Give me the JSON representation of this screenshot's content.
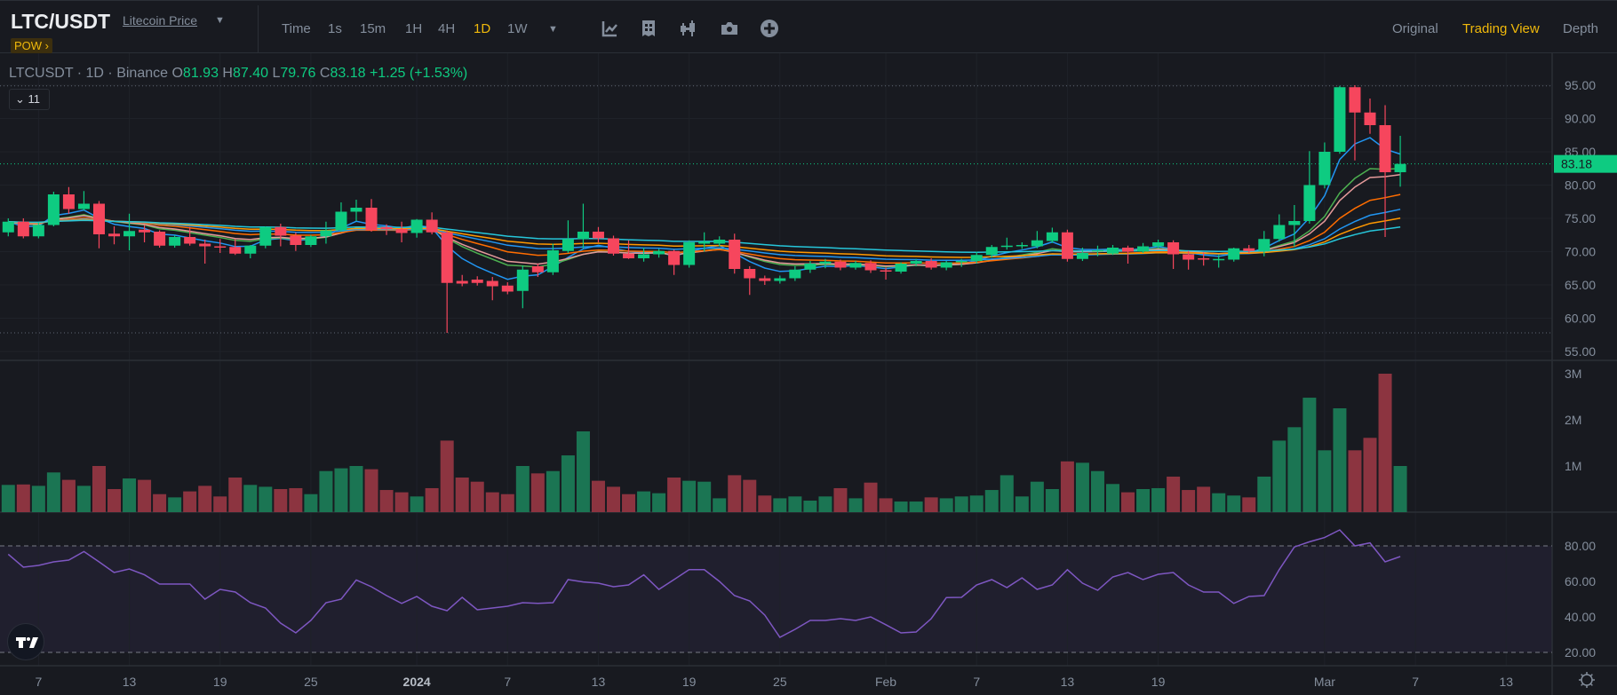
{
  "header": {
    "symbol": "LTC/USDT",
    "subtitle": "Litecoin Price",
    "badge": "POW ›",
    "intervals": [
      "Time",
      "1s",
      "15m",
      "1H",
      "4H",
      "1D",
      "1W"
    ],
    "active_interval": "1D",
    "more_caret": "▼",
    "tool_icons": [
      "indicators-icon",
      "chart-layout-icon",
      "candle-style-icon",
      "camera-icon",
      "add-icon"
    ],
    "views": [
      "Original",
      "Trading View",
      "Depth"
    ],
    "active_view": "Trading View"
  },
  "legend": {
    "title": "LTCUSDT · 1D · Binance",
    "o_label": "O",
    "o": "81.93",
    "h_label": "H",
    "h": "87.40",
    "l_label": "L",
    "l": "79.76",
    "c_label": "C",
    "c": "83.18",
    "change": "+1.25 (+1.53%)",
    "indicators_toggle": "⌄ 11"
  },
  "colors": {
    "up": "#0ecb81",
    "down": "#f6465d",
    "vol_up": "#1b7553",
    "vol_down": "#8c3440",
    "rsi": "#7e57c2",
    "bg": "#181a20"
  },
  "chart_data": {
    "type": "candlestick",
    "symbol": "LTCUSDT",
    "interval": "1D",
    "last_price": "83.18",
    "price_axis": [
      "95.00",
      "90.00",
      "85.00",
      "80.00",
      "75.00",
      "70.00",
      "65.00",
      "60.00",
      "55.00"
    ],
    "volume_axis": [
      "3M",
      "2M",
      "1M"
    ],
    "rsi_axis": [
      "80.00",
      "60.00",
      "40.00",
      "20.00"
    ],
    "time_axis": [
      "7",
      "13",
      "19",
      "25",
      "2024",
      "7",
      "13",
      "19",
      "25",
      "Feb",
      "7",
      "13",
      "19",
      "Mar",
      "7",
      "13"
    ],
    "ohlc": [
      [
        72.9,
        75.0,
        72.3,
        74.5
      ],
      [
        74.5,
        75.0,
        72.0,
        72.3
      ],
      [
        72.3,
        74.4,
        72.0,
        74.0
      ],
      [
        74.0,
        79.0,
        73.8,
        78.6
      ],
      [
        78.6,
        79.7,
        75.7,
        76.4
      ],
      [
        76.4,
        79.1,
        76.2,
        77.2
      ],
      [
        77.2,
        77.6,
        70.5,
        72.6
      ],
      [
        72.7,
        73.8,
        71.1,
        72.3
      ],
      [
        72.3,
        75.7,
        70.2,
        73.1
      ],
      [
        73.3,
        74.0,
        71.4,
        72.9
      ],
      [
        73.0,
        73.2,
        70.6,
        70.9
      ],
      [
        70.9,
        72.5,
        70.6,
        72.2
      ],
      [
        72.2,
        73.7,
        70.9,
        71.2
      ],
      [
        71.2,
        71.8,
        68.2,
        70.8
      ],
      [
        70.8,
        71.9,
        69.8,
        70.6
      ],
      [
        70.7,
        71.9,
        69.5,
        69.7
      ],
      [
        69.7,
        71.0,
        69.0,
        70.9
      ],
      [
        70.9,
        73.8,
        70.5,
        73.7
      ],
      [
        73.7,
        74.2,
        70.8,
        72.4
      ],
      [
        72.4,
        72.9,
        70.1,
        71.0
      ],
      [
        71.0,
        72.5,
        70.7,
        72.3
      ],
      [
        72.3,
        74.5,
        71.2,
        73.2
      ],
      [
        73.2,
        77.4,
        73.0,
        76.0
      ],
      [
        76.0,
        77.8,
        74.6,
        76.6
      ],
      [
        76.6,
        77.9,
        73.0,
        73.2
      ],
      [
        73.7,
        74.1,
        72.5,
        73.4
      ],
      [
        73.4,
        74.5,
        71.4,
        72.8
      ],
      [
        72.8,
        74.9,
        72.1,
        74.8
      ],
      [
        74.8,
        75.9,
        72.6,
        72.9
      ],
      [
        72.9,
        73.2,
        57.8,
        65.3
      ],
      [
        65.6,
        66.5,
        64.8,
        65.2
      ],
      [
        65.8,
        66.3,
        64.9,
        65.3
      ],
      [
        65.6,
        66.2,
        62.7,
        64.8
      ],
      [
        64.9,
        65.4,
        63.6,
        64.0
      ],
      [
        64.1,
        67.9,
        61.5,
        67.3
      ],
      [
        67.8,
        68.2,
        66.2,
        66.9
      ],
      [
        66.9,
        71.2,
        66.5,
        70.2
      ],
      [
        70.1,
        74.7,
        69.8,
        71.9
      ],
      [
        71.9,
        77.2,
        70.5,
        73.0
      ],
      [
        73.0,
        73.7,
        71.4,
        72.0
      ],
      [
        72.0,
        72.4,
        69.4,
        69.7
      ],
      [
        69.7,
        71.7,
        68.9,
        69.0
      ],
      [
        69.0,
        70.6,
        68.5,
        69.6
      ],
      [
        69.6,
        70.4,
        69.1,
        70.1
      ],
      [
        70.1,
        70.3,
        66.5,
        68.0
      ],
      [
        68.0,
        71.7,
        67.6,
        71.4
      ],
      [
        71.2,
        72.9,
        70.0,
        71.5
      ],
      [
        71.2,
        72.3,
        70.8,
        71.8
      ],
      [
        71.8,
        72.7,
        66.7,
        67.4
      ],
      [
        67.4,
        67.8,
        63.5,
        66.0
      ],
      [
        66.0,
        66.4,
        65.0,
        65.6
      ],
      [
        65.6,
        66.4,
        65.2,
        66.0
      ],
      [
        66.0,
        67.8,
        65.6,
        67.3
      ],
      [
        67.3,
        68.6,
        66.8,
        68.2
      ],
      [
        68.2,
        68.9,
        67.5,
        68.5
      ],
      [
        68.5,
        68.8,
        67.2,
        67.6
      ],
      [
        67.6,
        68.6,
        67.3,
        68.3
      ],
      [
        68.3,
        68.7,
        66.8,
        67.2
      ],
      [
        67.2,
        67.6,
        65.8,
        67.0
      ],
      [
        67.0,
        68.4,
        66.7,
        68.2
      ],
      [
        68.2,
        68.9,
        67.8,
        68.6
      ],
      [
        68.6,
        69.0,
        67.3,
        67.6
      ],
      [
        67.6,
        68.6,
        67.2,
        68.4
      ],
      [
        68.4,
        68.9,
        67.7,
        68.6
      ],
      [
        68.6,
        70.0,
        68.2,
        69.5
      ],
      [
        69.5,
        71.0,
        69.1,
        70.7
      ],
      [
        70.7,
        72.1,
        70.3,
        70.9
      ],
      [
        70.9,
        71.4,
        70.4,
        71.0
      ],
      [
        70.8,
        73.1,
        70.5,
        71.7
      ],
      [
        71.6,
        73.6,
        71.3,
        72.9
      ],
      [
        72.9,
        73.3,
        68.5,
        68.9
      ],
      [
        68.9,
        70.6,
        68.6,
        69.8
      ],
      [
        70.0,
        70.9,
        69.3,
        70.2
      ],
      [
        69.7,
        71.0,
        69.5,
        70.6
      ],
      [
        70.6,
        70.9,
        68.2,
        70.0
      ],
      [
        70.0,
        71.3,
        69.8,
        70.8
      ],
      [
        70.8,
        71.8,
        70.5,
        71.4
      ],
      [
        71.4,
        71.7,
        67.4,
        69.6
      ],
      [
        69.6,
        70.1,
        67.3,
        68.8
      ],
      [
        69.0,
        69.9,
        67.9,
        68.8
      ],
      [
        68.8,
        69.5,
        67.6,
        68.9
      ],
      [
        68.8,
        70.6,
        68.5,
        70.5
      ],
      [
        70.5,
        71.0,
        69.8,
        70.1
      ],
      [
        70.1,
        73.1,
        69.3,
        71.9
      ],
      [
        71.9,
        75.6,
        71.5,
        74.0
      ],
      [
        74.0,
        77.0,
        70.7,
        74.6
      ],
      [
        74.6,
        85.1,
        74.2,
        80.0
      ],
      [
        80.0,
        86.4,
        79.5,
        85.0
      ],
      [
        85.0,
        94.9,
        84.7,
        94.7
      ],
      [
        94.7,
        95.0,
        83.7,
        90.9
      ],
      [
        90.9,
        93.0,
        87.7,
        89.0
      ],
      [
        89.0,
        92.0,
        72.2,
        81.93
      ],
      [
        81.93,
        87.4,
        79.76,
        83.18
      ]
    ],
    "volume_millions": [
      0.59,
      0.6,
      0.57,
      0.86,
      0.7,
      0.57,
      1.0,
      0.5,
      0.73,
      0.7,
      0.39,
      0.32,
      0.45,
      0.57,
      0.34,
      0.75,
      0.59,
      0.55,
      0.5,
      0.52,
      0.39,
      0.89,
      0.95,
      1.0,
      0.93,
      0.48,
      0.43,
      0.34,
      0.52,
      1.55,
      0.75,
      0.66,
      0.43,
      0.39,
      1.0,
      0.84,
      0.89,
      1.23,
      1.75,
      0.68,
      0.55,
      0.39,
      0.45,
      0.41,
      0.75,
      0.68,
      0.66,
      0.3,
      0.8,
      0.7,
      0.36,
      0.3,
      0.34,
      0.25,
      0.34,
      0.52,
      0.3,
      0.64,
      0.3,
      0.23,
      0.23,
      0.32,
      0.3,
      0.34,
      0.36,
      0.48,
      0.8,
      0.34,
      0.66,
      0.5,
      1.1,
      1.07,
      0.89,
      0.61,
      0.43,
      0.5,
      0.52,
      0.77,
      0.48,
      0.55,
      0.41,
      0.36,
      0.32,
      0.77,
      1.55,
      1.84,
      2.48,
      1.34,
      2.25,
      1.34,
      1.61,
      3.0,
      1.0
    ],
    "rsi": [
      75.3,
      68,
      69,
      71,
      72,
      76.8,
      71,
      65,
      67,
      63.7,
      58.5,
      58.5,
      58.5,
      50,
      55.5,
      54,
      48,
      45,
      36.5,
      31,
      38,
      48,
      50,
      60.8,
      57,
      52,
      47.6,
      51.5,
      46,
      43.5,
      51,
      44,
      45,
      46,
      48,
      47.6,
      48,
      61,
      59.7,
      59,
      57,
      58,
      63.7,
      55.5,
      61,
      66.6,
      66.6,
      60,
      52,
      49,
      41,
      28.5,
      33,
      38,
      38,
      39,
      38,
      40,
      35.6,
      31,
      31.5,
      39,
      50.9,
      51,
      58,
      61,
      56.5,
      62,
      55.5,
      58,
      66.6,
      59,
      55,
      62.5,
      65,
      61,
      64,
      65,
      58,
      54,
      54,
      47.6,
      51.5,
      52,
      66.6,
      79.4,
      82.3,
      84.7,
      89,
      80,
      81.7,
      71,
      74
    ],
    "rsi_bands": [
      20,
      80
    ],
    "moving_averages": [
      {
        "period": 5,
        "color": "#2196f3"
      },
      {
        "period": 10,
        "color": "#4caf50"
      },
      {
        "period": 12,
        "color": "#e59a9a"
      },
      {
        "period": 20,
        "color": "#ff6d00"
      },
      {
        "period": 30,
        "color": "#2196f3"
      },
      {
        "period": 40,
        "color": "#ff9800"
      },
      {
        "period": 60,
        "color": "#26c6da"
      }
    ]
  }
}
